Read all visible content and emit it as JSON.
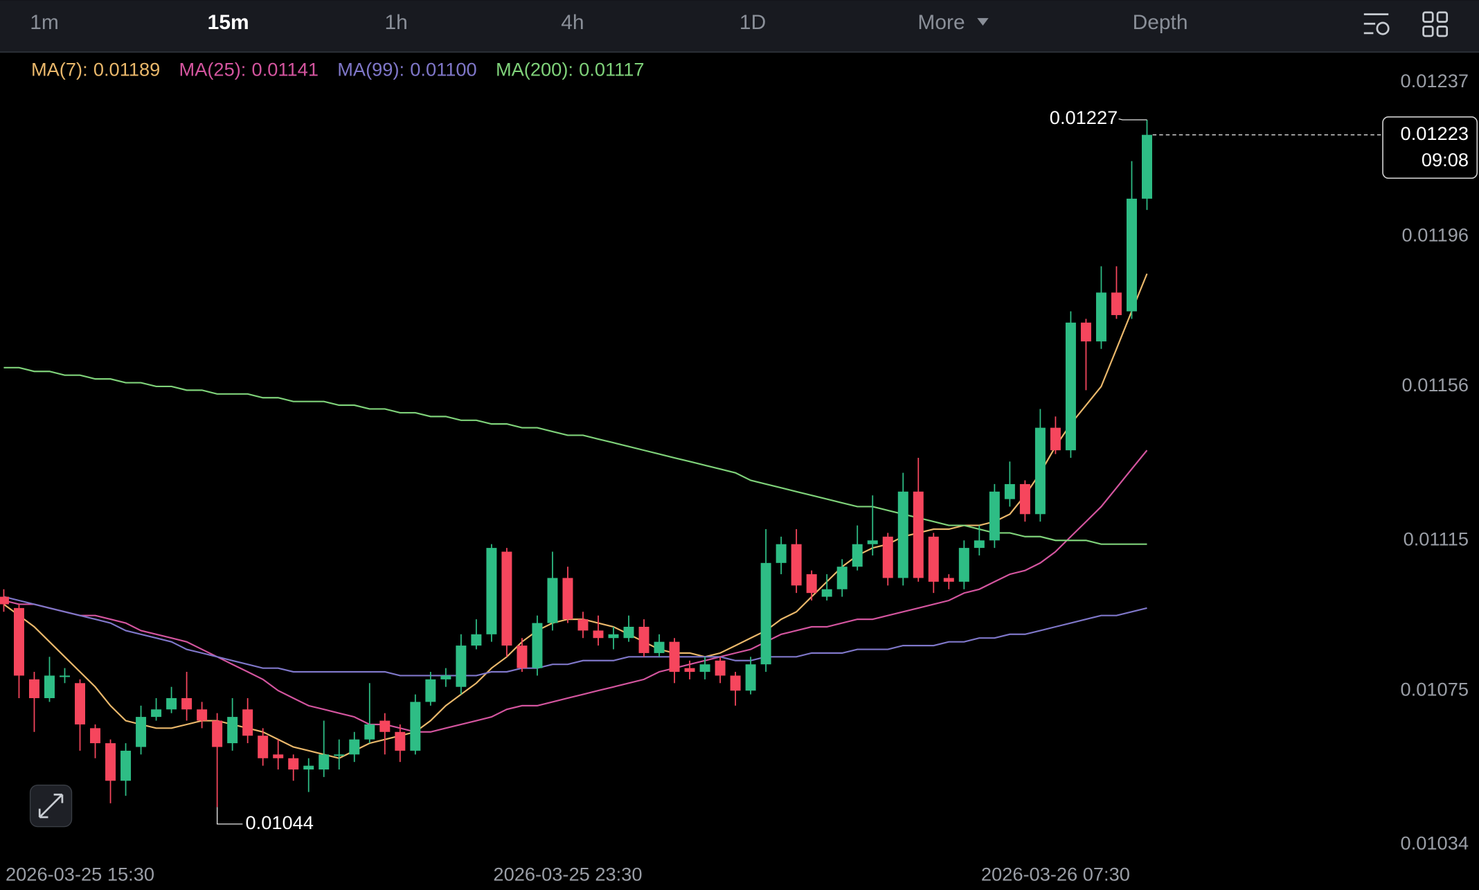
{
  "toolbar": {
    "tabs": [
      "1m",
      "15m",
      "1h",
      "4h",
      "1D",
      "More",
      "Depth"
    ],
    "active_index": 1
  },
  "chart_data": {
    "type": "candlestick",
    "categories": [
      null,
      null,
      null,
      null,
      null,
      "2026-03-25 15:30",
      null,
      null,
      null,
      null,
      null,
      null,
      null,
      null,
      null,
      null,
      null,
      null,
      null,
      null,
      null,
      null,
      null,
      null,
      null,
      null,
      null,
      null,
      null,
      null,
      null,
      null,
      null,
      null,
      null,
      null,
      null,
      "2026-03-25 23:30",
      null,
      null,
      null,
      null,
      null,
      null,
      null,
      null,
      null,
      null,
      null,
      null,
      null,
      null,
      null,
      null,
      null,
      null,
      null,
      null,
      null,
      null,
      null,
      null,
      null,
      null,
      null,
      null,
      null,
      null,
      null,
      "2026-03-26 07:30",
      null,
      null,
      null,
      null,
      null,
      null
    ],
    "open": [
      0.011,
      0.01097,
      0.01078,
      0.01073,
      0.01079,
      0.01077,
      0.01065,
      0.01061,
      0.01051,
      0.0106,
      0.01068,
      0.0107,
      0.01073,
      0.0107,
      0.01067,
      0.01061,
      0.0107,
      0.01063,
      0.01058,
      0.01057,
      0.01054,
      0.01054,
      0.01058,
      0.01058,
      0.01062,
      0.01067,
      0.01064,
      0.01059,
      0.01072,
      0.01078,
      0.01076,
      0.01087,
      0.0109,
      0.01112,
      0.01087,
      0.01081,
      0.01093,
      0.01105,
      0.01094,
      0.01091,
      0.01089,
      0.01089,
      0.01092,
      0.01085,
      0.01088,
      0.01081,
      0.0108,
      0.01083,
      0.01079,
      0.01075,
      0.01082,
      0.01109,
      0.01114,
      0.01106,
      0.011,
      0.01102,
      0.01108,
      0.01114,
      0.01116,
      0.01105,
      0.01128,
      0.01116,
      0.01105,
      0.01104,
      0.01113,
      0.01115,
      0.01126,
      0.0113,
      0.01122,
      0.01145,
      0.01139,
      0.01173,
      0.01168,
      0.01181,
      0.01176,
      0.01206
    ],
    "high": [
      0.01102,
      0.01098,
      0.0108,
      0.01084,
      0.01081,
      0.01078,
      0.01066,
      0.01062,
      0.01061,
      0.01071,
      0.01073,
      0.01076,
      0.0108,
      0.01072,
      0.01069,
      0.01073,
      0.01073,
      0.01065,
      0.01062,
      0.01058,
      0.01057,
      0.01067,
      0.01062,
      0.01064,
      0.01077,
      0.01069,
      0.01066,
      0.01074,
      0.0108,
      0.01081,
      0.0109,
      0.01094,
      0.01114,
      0.01113,
      0.01089,
      0.01095,
      0.01112,
      0.01108,
      0.01096,
      0.01095,
      0.01092,
      0.01095,
      0.01094,
      0.0109,
      0.01089,
      0.01083,
      0.01084,
      0.01084,
      0.0108,
      0.01084,
      0.01118,
      0.01116,
      0.01118,
      0.01107,
      0.01106,
      0.0111,
      0.01119,
      0.01127,
      0.01117,
      0.01133,
      0.01137,
      0.01117,
      0.01106,
      0.01115,
      0.01119,
      0.0113,
      0.01136,
      0.01131,
      0.0115,
      0.01148,
      0.01176,
      0.01174,
      0.01188,
      0.01188,
      0.01216,
      0.01227
    ],
    "low": [
      0.01096,
      0.01073,
      0.01064,
      0.01072,
      0.01077,
      0.01059,
      0.01057,
      0.01045,
      0.01047,
      0.01058,
      0.01067,
      0.01069,
      0.01067,
      0.01065,
      0.01044,
      0.01059,
      0.01061,
      0.01055,
      0.01054,
      0.01051,
      0.01048,
      0.01052,
      0.01054,
      0.01056,
      0.01061,
      0.01058,
      0.01056,
      0.01058,
      0.01071,
      0.01076,
      0.01074,
      0.01086,
      0.01088,
      0.01084,
      0.0108,
      0.01079,
      0.01091,
      0.01093,
      0.01089,
      0.01087,
      0.01086,
      0.01088,
      0.01084,
      0.01084,
      0.01077,
      0.01078,
      0.01078,
      0.01077,
      0.01071,
      0.01074,
      0.0108,
      0.01106,
      0.01101,
      0.01099,
      0.01099,
      0.011,
      0.01107,
      0.01111,
      0.01103,
      0.01103,
      0.01104,
      0.01101,
      0.01102,
      0.01102,
      0.01111,
      0.01113,
      0.01124,
      0.0112,
      0.0112,
      0.01138,
      0.01137,
      0.01155,
      0.01166,
      0.01174,
      0.01174,
      0.01203
    ],
    "close": [
      0.01098,
      0.01079,
      0.01073,
      0.01079,
      0.01079,
      0.01066,
      0.01061,
      0.01051,
      0.01059,
      0.01068,
      0.0107,
      0.01073,
      0.0107,
      0.01067,
      0.0106,
      0.01068,
      0.01063,
      0.01057,
      0.01057,
      0.01054,
      0.01055,
      0.01058,
      0.01058,
      0.01062,
      0.01066,
      0.01064,
      0.01059,
      0.01072,
      0.01078,
      0.01079,
      0.01087,
      0.0109,
      0.01113,
      0.01087,
      0.01081,
      0.01093,
      0.01105,
      0.01094,
      0.01091,
      0.01089,
      0.0109,
      0.01092,
      0.01085,
      0.01088,
      0.0108,
      0.0108,
      0.01082,
      0.01079,
      0.01075,
      0.01082,
      0.01109,
      0.01114,
      0.01103,
      0.01101,
      0.01102,
      0.01108,
      0.01114,
      0.01115,
      0.01105,
      0.01128,
      0.01105,
      0.01104,
      0.01104,
      0.01113,
      0.01115,
      0.01128,
      0.0113,
      0.01122,
      0.01145,
      0.01139,
      0.01173,
      0.01168,
      0.01181,
      0.01175,
      0.01206,
      0.01223
    ],
    "up_color": "#2ebd85",
    "down_color": "#f6465d",
    "series": [
      {
        "name": "MA(7):",
        "color": "#eab86b",
        "legend_value": 0.01189,
        "values": [
          0.01098,
          0.01095,
          0.01092,
          0.01088,
          0.01084,
          0.0108,
          0.01076,
          0.01071,
          0.01067,
          0.01066,
          0.01065,
          0.01065,
          0.01066,
          0.01067,
          0.01067,
          0.01066,
          0.01065,
          0.01064,
          0.01062,
          0.0106,
          0.01059,
          0.01058,
          0.01057,
          0.01059,
          0.01061,
          0.01062,
          0.01063,
          0.01064,
          0.01067,
          0.01071,
          0.01074,
          0.01077,
          0.01081,
          0.01084,
          0.01088,
          0.01091,
          0.01093,
          0.01094,
          0.01094,
          0.01093,
          0.01092,
          0.0109,
          0.01088,
          0.01086,
          0.01085,
          0.01085,
          0.01084,
          0.01085,
          0.01087,
          0.01089,
          0.01091,
          0.01094,
          0.01096,
          0.011,
          0.01104,
          0.01108,
          0.01111,
          0.01113,
          0.01114,
          0.01116,
          0.01117,
          0.01118,
          0.01118,
          0.01119,
          0.01119,
          0.0112,
          0.01122,
          0.01127,
          0.01133,
          0.0114,
          0.01146,
          0.01151,
          0.01156,
          0.01166,
          0.01176,
          0.01186
        ]
      },
      {
        "name": "MA(25):",
        "color": "#d4559f",
        "legend_value": 0.01141,
        "values": [
          0.01099,
          0.01098,
          0.01098,
          0.01097,
          0.01096,
          0.01095,
          0.01095,
          0.01094,
          0.01093,
          0.01091,
          0.0109,
          0.01089,
          0.01088,
          0.01086,
          0.01084,
          0.01082,
          0.0108,
          0.01078,
          0.01075,
          0.01073,
          0.01071,
          0.0107,
          0.01069,
          0.01068,
          0.01066,
          0.01066,
          0.01065,
          0.01064,
          0.01064,
          0.01065,
          0.01066,
          0.01067,
          0.01068,
          0.0107,
          0.01071,
          0.01071,
          0.01072,
          0.01073,
          0.01074,
          0.01075,
          0.01076,
          0.01077,
          0.01078,
          0.0108,
          0.01081,
          0.01082,
          0.01083,
          0.01084,
          0.01085,
          0.01086,
          0.01088,
          0.0109,
          0.01091,
          0.01092,
          0.01092,
          0.01093,
          0.01094,
          0.01094,
          0.01095,
          0.01096,
          0.01097,
          0.01098,
          0.01099,
          0.01101,
          0.01102,
          0.01104,
          0.01106,
          0.01107,
          0.01109,
          0.01112,
          0.01116,
          0.0112,
          0.01124,
          0.01129,
          0.01134,
          0.01139
        ]
      },
      {
        "name": "MA(99):",
        "color": "#7f77c9",
        "legend_value": {
          "value": 0.011,
          "label": "0.01100"
        },
        "values": [
          0.011,
          0.01099,
          0.01098,
          0.01097,
          0.01096,
          0.01095,
          0.01094,
          0.01093,
          0.01091,
          0.0109,
          0.01089,
          0.01088,
          0.01086,
          0.01085,
          0.01084,
          0.01083,
          0.01082,
          0.01081,
          0.01081,
          0.0108,
          0.0108,
          0.0108,
          0.0108,
          0.0108,
          0.0108,
          0.0108,
          0.01079,
          0.01079,
          0.01079,
          0.01079,
          0.01079,
          0.01079,
          0.0108,
          0.0108,
          0.01081,
          0.01081,
          0.01082,
          0.01082,
          0.01083,
          0.01083,
          0.01083,
          0.01084,
          0.01084,
          0.01084,
          0.01084,
          0.01084,
          0.01084,
          0.01084,
          0.01083,
          0.01083,
          0.01084,
          0.01084,
          0.01084,
          0.01085,
          0.01085,
          0.01085,
          0.01086,
          0.01086,
          0.01086,
          0.01087,
          0.01087,
          0.01087,
          0.01088,
          0.01088,
          0.01089,
          0.01089,
          0.0109,
          0.0109,
          0.01091,
          0.01092,
          0.01093,
          0.01094,
          0.01095,
          0.01095,
          0.01096,
          0.01097
        ]
      },
      {
        "name": "MA(200):",
        "color": "#7fd27a",
        "legend_value": 0.01117,
        "values": [
          0.01161,
          0.01161,
          0.0116,
          0.0116,
          0.01159,
          0.01159,
          0.01158,
          0.01158,
          0.01157,
          0.01157,
          0.01156,
          0.01156,
          0.01155,
          0.01155,
          0.01154,
          0.01154,
          0.01154,
          0.01153,
          0.01153,
          0.01152,
          0.01152,
          0.01152,
          0.01151,
          0.01151,
          0.0115,
          0.0115,
          0.01149,
          0.01149,
          0.01148,
          0.01148,
          0.01147,
          0.01147,
          0.01146,
          0.01146,
          0.01145,
          0.01145,
          0.01144,
          0.01143,
          0.01143,
          0.01142,
          0.01141,
          0.0114,
          0.01139,
          0.01138,
          0.01137,
          0.01136,
          0.01135,
          0.01134,
          0.01133,
          0.01131,
          0.0113,
          0.01129,
          0.01128,
          0.01127,
          0.01126,
          0.01125,
          0.01124,
          0.01124,
          0.01123,
          0.01122,
          0.01121,
          0.0112,
          0.01119,
          0.01119,
          0.01118,
          0.01117,
          0.01117,
          0.01116,
          0.01116,
          0.01115,
          0.01115,
          0.01115,
          0.01114,
          0.01114,
          0.01114,
          0.01114
        ]
      }
    ],
    "countdown": "09:08",
    "ylim": [
      0.010227,
      0.012448
    ],
    "yticks": [
      0.01237,
      0.01196,
      0.01156,
      0.01115,
      0.01075,
      0.01034
    ],
    "grid": false
  }
}
